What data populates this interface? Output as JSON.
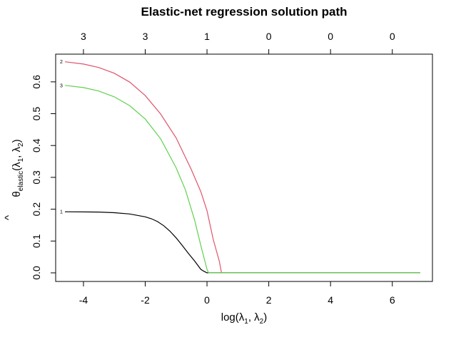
{
  "chart_data": {
    "type": "line",
    "title": "Elastic-net regression solution path",
    "xlabel": {
      "prefix": "log(",
      "l1": "λ",
      "l1_sub": "1",
      "sep": ", ",
      "l2": "λ",
      "l2_sub": "2",
      "suffix": ")"
    },
    "ylabel": {
      "theta": "θ",
      "hat": "^",
      "sub": "elastic",
      "args_prefix": "(",
      "l1": "λ",
      "l1_sub": "1",
      "sep": ", ",
      "l2": "λ",
      "l2_sub": "2",
      "suffix": ")"
    },
    "xlim": [
      -4.9,
      7.3
    ],
    "ylim": [
      -0.027,
      0.687
    ],
    "x_ticks": [
      -4,
      -2,
      0,
      2,
      4,
      6
    ],
    "x_tick_labels": [
      "-4",
      "-2",
      "0",
      "2",
      "4",
      "6"
    ],
    "y_ticks": [
      0.0,
      0.1,
      0.2,
      0.3,
      0.4,
      0.5,
      0.6
    ],
    "y_tick_labels": [
      "0.0",
      "0.1",
      "0.2",
      "0.3",
      "0.4",
      "0.5",
      "0.6"
    ],
    "top_axis_ticks": [
      -4,
      -2,
      0,
      2,
      4,
      6
    ],
    "top_axis_labels": [
      "3",
      "3",
      "1",
      "0",
      "0",
      "0"
    ],
    "grid": false,
    "series": [
      {
        "label": "1",
        "color": "#000000",
        "x": [
          -4.6,
          -3.5,
          -3.0,
          -2.5,
          -2.0,
          -1.8,
          -1.6,
          -1.4,
          -1.2,
          -1.0,
          -0.8,
          -0.6,
          -0.4,
          -0.2,
          -0.1,
          0.0,
          6.9
        ],
        "y": [
          0.192,
          0.191,
          0.189,
          0.185,
          0.176,
          0.17,
          0.161,
          0.148,
          0.131,
          0.11,
          0.086,
          0.061,
          0.037,
          0.011,
          0.005,
          0.0,
          0.0
        ]
      },
      {
        "label": "2",
        "color": "#DF536B",
        "x": [
          -4.6,
          -4.0,
          -3.5,
          -3.0,
          -2.5,
          -2.0,
          -1.5,
          -1.0,
          -0.5,
          -0.2,
          0.0,
          0.2,
          0.4,
          0.47,
          6.9
        ],
        "y": [
          0.663,
          0.656,
          0.645,
          0.627,
          0.599,
          0.557,
          0.499,
          0.424,
          0.323,
          0.255,
          0.195,
          0.106,
          0.036,
          0.0,
          0.0
        ]
      },
      {
        "label": "3",
        "color": "#61D04F",
        "x": [
          -4.6,
          -4.0,
          -3.5,
          -3.0,
          -2.5,
          -2.0,
          -1.5,
          -1.0,
          -0.7,
          -0.4,
          -0.2,
          0.0,
          0.05,
          6.9
        ],
        "y": [
          0.589,
          0.582,
          0.571,
          0.553,
          0.525,
          0.483,
          0.421,
          0.33,
          0.261,
          0.165,
          0.086,
          0.011,
          0.0,
          0.0
        ]
      }
    ]
  }
}
